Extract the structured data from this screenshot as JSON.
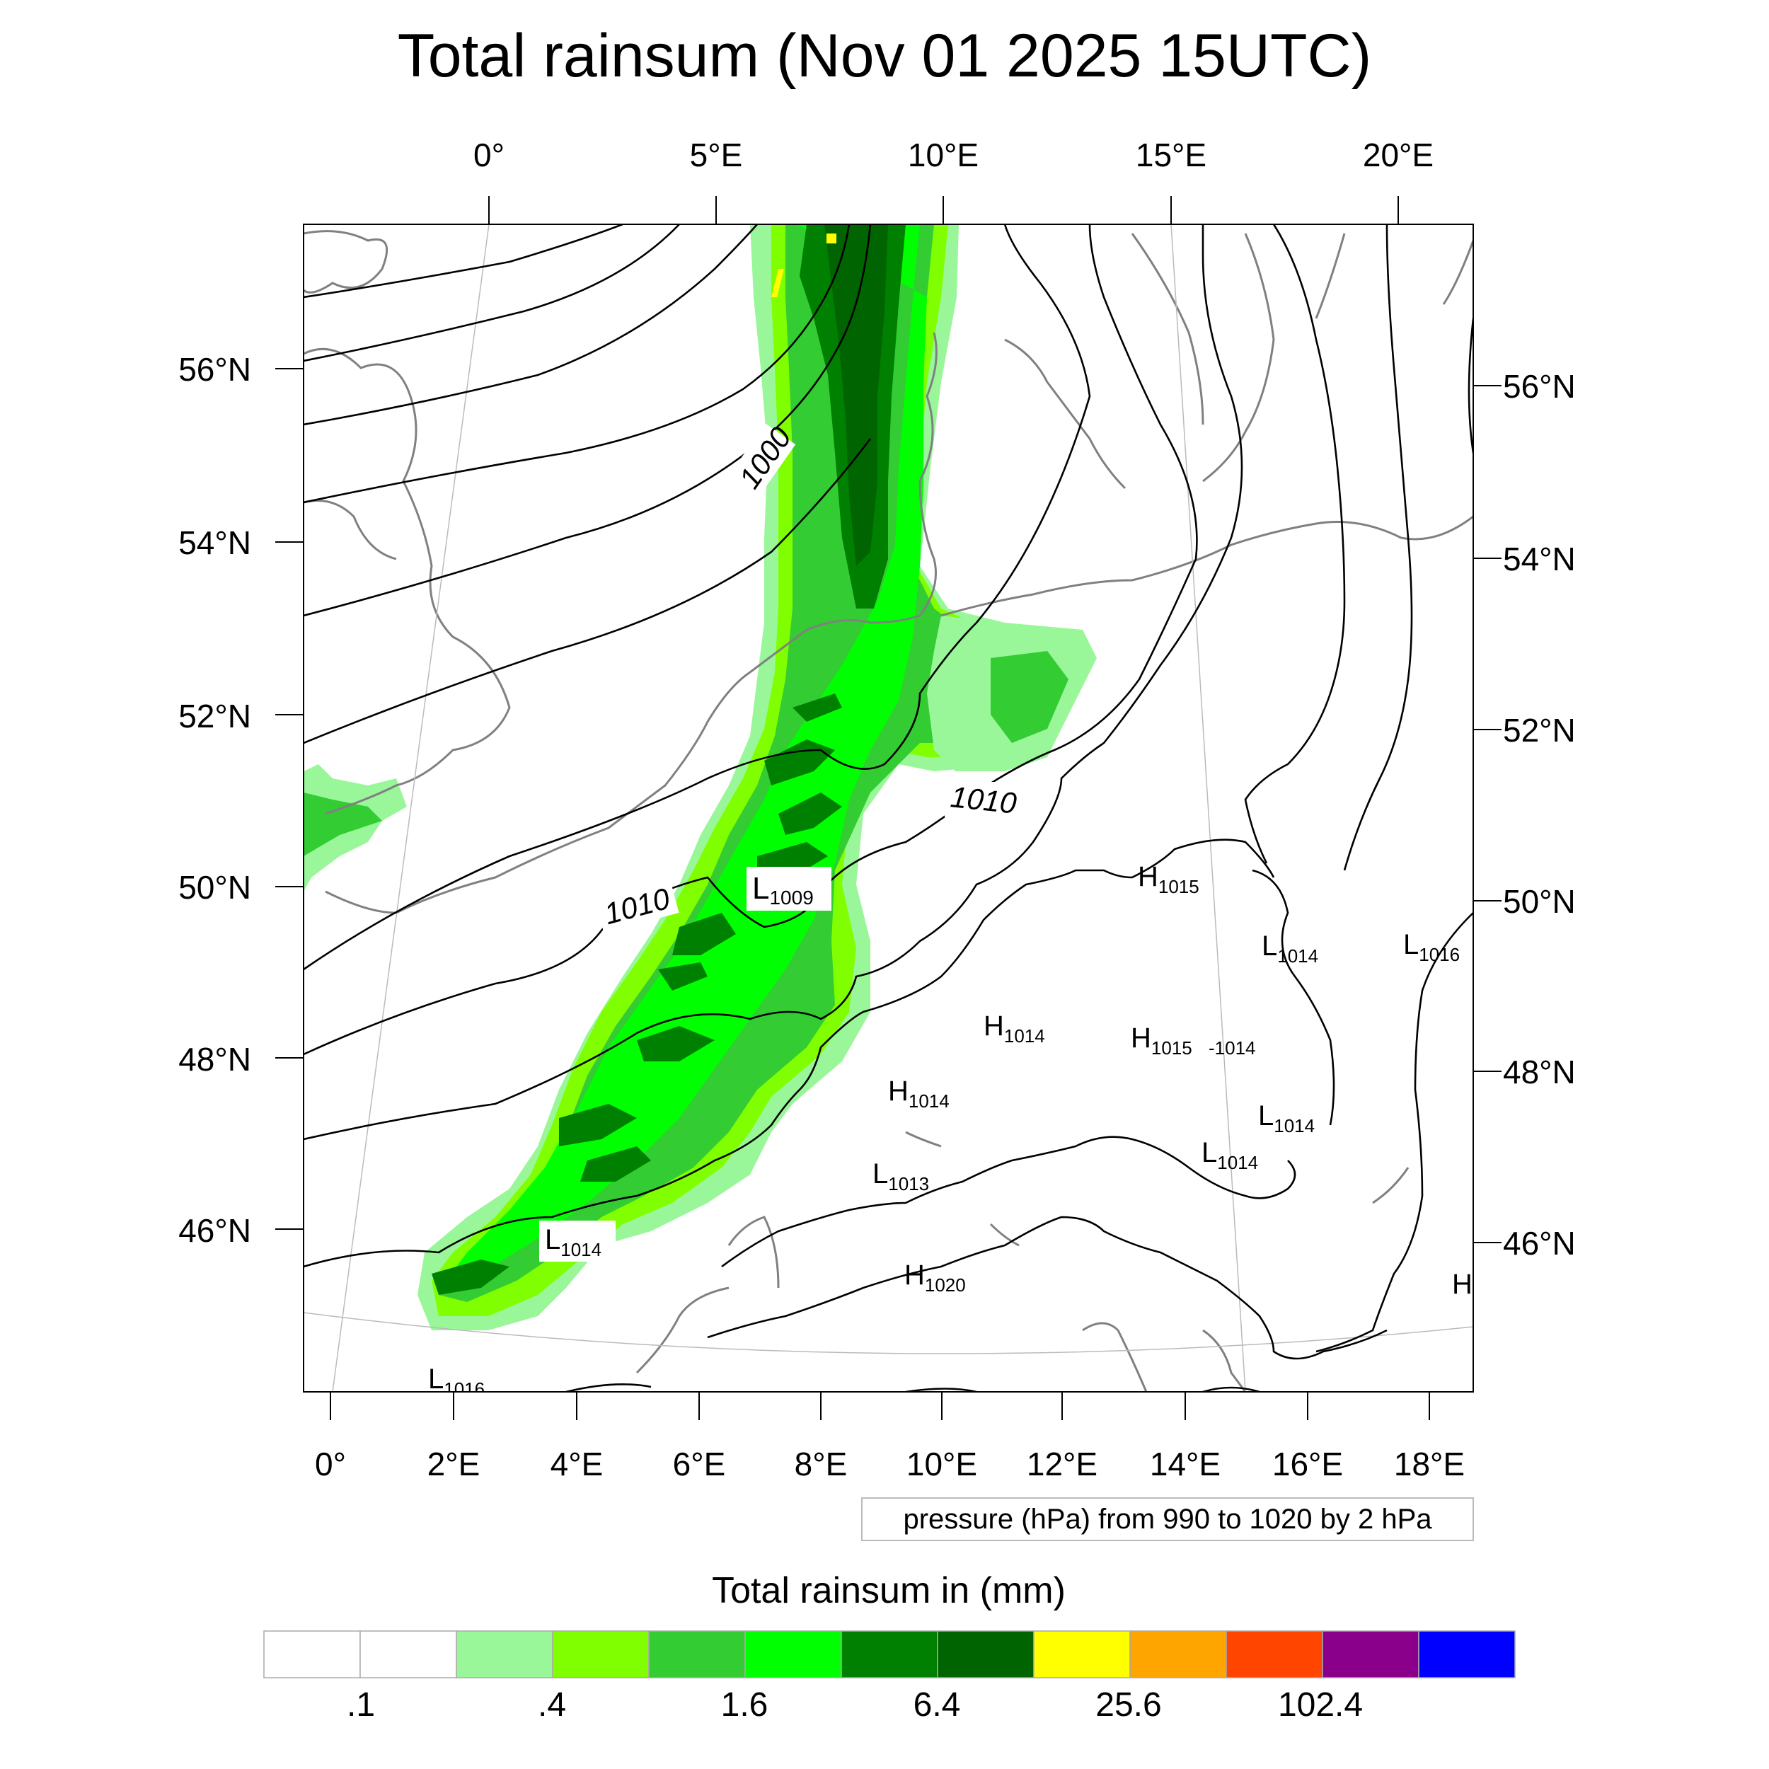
{
  "title": "Total rainsum (Nov 01 2025 15UTC)",
  "top_lon_labels": [
    "0°",
    "5°E",
    "10°E",
    "15°E",
    "20°E"
  ],
  "left_lat_labels": [
    "56°N",
    "54°N",
    "52°N",
    "50°N",
    "48°N",
    "46°N"
  ],
  "right_lat_labels": [
    "56°N",
    "54°N",
    "52°N",
    "50°N",
    "48°N",
    "46°N"
  ],
  "bottom_lon_labels": [
    "0°",
    "2°E",
    "4°E",
    "6°E",
    "8°E",
    "10°E",
    "12°E",
    "14°E",
    "16°E",
    "18°E"
  ],
  "contour_labels": [
    "1000",
    "1010",
    "1010"
  ],
  "pressure_centers": [
    {
      "type": "L",
      "value": "1009"
    },
    {
      "type": "H",
      "value": "1015"
    },
    {
      "type": "L",
      "value": "1014"
    },
    {
      "type": "L",
      "value": "1016"
    },
    {
      "type": "H",
      "value": "1014"
    },
    {
      "type": "H",
      "value": "1015"
    },
    {
      "type": "",
      "value": "1014"
    },
    {
      "type": "H",
      "value": "1014"
    },
    {
      "type": "L",
      "value": "1014"
    },
    {
      "type": "L",
      "value": "1014"
    },
    {
      "type": "L",
      "value": "1013"
    },
    {
      "type": "L",
      "value": "1014"
    },
    {
      "type": "H",
      "value": "1020"
    },
    {
      "type": "L",
      "value": "1016"
    },
    {
      "type": "H",
      "value": ""
    }
  ],
  "info_box": "pressure (hPa) from 990 to 1020 by 2 hPa",
  "colorbar": {
    "title": "Total rainsum in (mm)",
    "colors": [
      "#ffffff",
      "#ffffff",
      "#99f799",
      "#80ff00",
      "#33cc33",
      "#00ff00",
      "#008000",
      "#006400",
      "#ffff00",
      "#ffa500",
      "#ff4500",
      "#8b008b",
      "#0000ff"
    ],
    "tick_labels": [
      ".1",
      ".4",
      "1.6",
      "6.4",
      "25.6",
      "102.4"
    ]
  },
  "rain_colors": {
    "light": "#99f799",
    "lime": "#80ff00",
    "medium": "#33cc33",
    "bright": "#00ff00",
    "dark": "#008000",
    "darker": "#006400",
    "yellow": "#ffff00"
  }
}
